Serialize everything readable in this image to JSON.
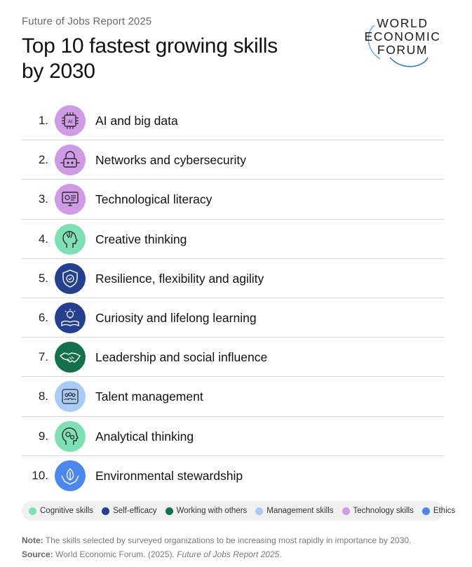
{
  "header": {
    "kicker": "Future of Jobs Report 2025",
    "title": "Top 10 fastest growing skills by 2030"
  },
  "logo": {
    "line1": "WORLD",
    "line2": "ECONOMIC",
    "line3": "FORUM"
  },
  "skills": [
    {
      "rank": "1.",
      "label": "AI and big data",
      "category": "Technology skills",
      "icon": "ai-chip-icon",
      "color": "#d09be6"
    },
    {
      "rank": "2.",
      "label": "Networks and cybersecurity",
      "category": "Technology skills",
      "icon": "padlock-network-icon",
      "color": "#d09be6"
    },
    {
      "rank": "3.",
      "label": "Technological literacy",
      "category": "Technology skills",
      "icon": "computer-monitor-icon",
      "color": "#d09be6"
    },
    {
      "rank": "4.",
      "label": "Creative thinking",
      "category": "Cognitive skills",
      "icon": "head-paintbrush-icon",
      "color": "#7fe0b3"
    },
    {
      "rank": "5.",
      "label": "Resilience, flexibility and agility",
      "category": "Self-efficacy",
      "icon": "shield-check-icon",
      "color": "#24408e"
    },
    {
      "rank": "6.",
      "label": "Curiosity and lifelong learning",
      "category": "Self-efficacy",
      "icon": "book-lightbulb-icon",
      "color": "#24408e"
    },
    {
      "rank": "7.",
      "label": "Leadership and social influence",
      "category": "Working with others",
      "icon": "handshake-icon",
      "color": "#13704a"
    },
    {
      "rank": "8.",
      "label": "Talent management",
      "category": "Management skills",
      "icon": "team-people-icon",
      "color": "#a9cbf5"
    },
    {
      "rank": "9.",
      "label": "Analytical thinking",
      "category": "Cognitive skills",
      "icon": "head-gears-icon",
      "color": "#7fe0b3"
    },
    {
      "rank": "10.",
      "label": "Environmental stewardship",
      "category": "Ethics",
      "icon": "hands-leaf-icon",
      "color": "#4b87ec"
    }
  ],
  "legend": [
    {
      "label": "Cognitive skills",
      "color": "#7fe0b3"
    },
    {
      "label": "Self-efficacy",
      "color": "#24408e"
    },
    {
      "label": "Working with others",
      "color": "#13704a"
    },
    {
      "label": "Management skills",
      "color": "#a9cbf5"
    },
    {
      "label": "Technology skills",
      "color": "#d09be6"
    },
    {
      "label": "Ethics",
      "color": "#4b87ec"
    }
  ],
  "footer": {
    "note_label": "Note:",
    "note_text": " The skills selected by surveyed organizations to be increasing most rapidly in importance by 2030.",
    "source_label": "Source:",
    "source_text": " World Economic Forum. (2025). ",
    "source_title": "Future of Jobs Report 2025",
    "source_end": "."
  }
}
